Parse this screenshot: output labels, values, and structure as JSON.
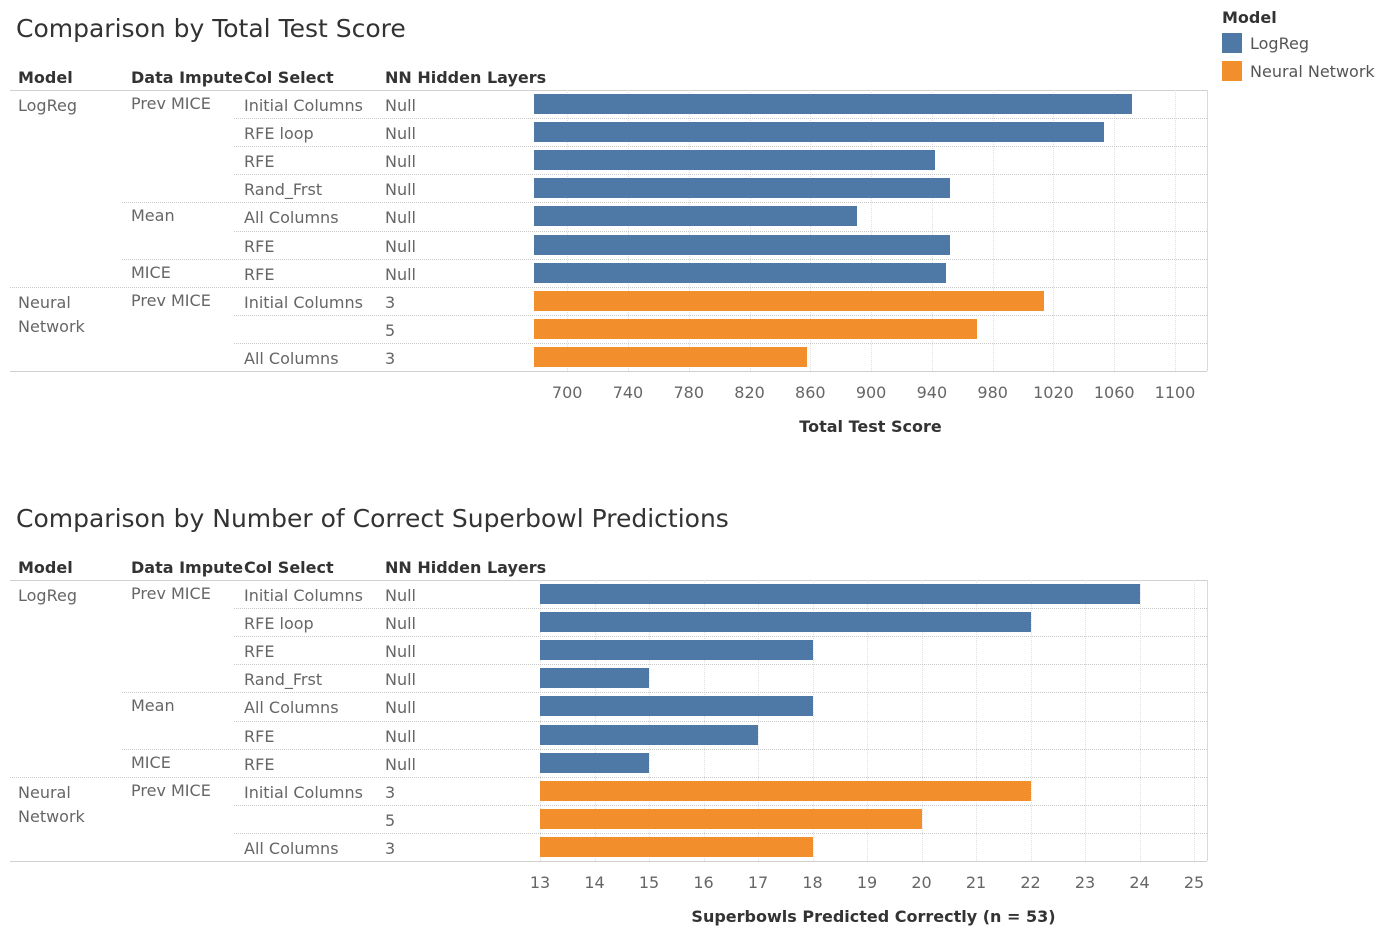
{
  "legend": {
    "title": "Model",
    "items": [
      {
        "label": "LogReg",
        "color": "#4e79a7"
      },
      {
        "label": "Neural Network",
        "color": "#f28e2b"
      }
    ]
  },
  "headers": [
    "Model",
    "Data Impute",
    "Col Select",
    "NN Hidden Layers"
  ],
  "chart_data": [
    {
      "type": "bar",
      "title": "Comparison by Total Test Score",
      "xlabel": "Total Test Score",
      "xlim": [
        690,
        1100
      ],
      "ticks": [
        700,
        740,
        780,
        820,
        860,
        900,
        940,
        980,
        1020,
        1060,
        1100
      ],
      "rows": [
        {
          "model": "LogReg",
          "impute": "Prev MICE",
          "col": "Initial Columns",
          "layers": "Null",
          "value": 1072,
          "series": "LogReg"
        },
        {
          "model": "",
          "impute": "",
          "col": "RFE loop",
          "layers": "Null",
          "value": 1053,
          "series": "LogReg"
        },
        {
          "model": "",
          "impute": "",
          "col": "RFE",
          "layers": "Null",
          "value": 942,
          "series": "LogReg"
        },
        {
          "model": "",
          "impute": "",
          "col": "Rand_Frst",
          "layers": "Null",
          "value": 952,
          "series": "LogReg"
        },
        {
          "model": "",
          "impute": "Mean",
          "col": "All Columns",
          "layers": "Null",
          "value": 891,
          "series": "LogReg"
        },
        {
          "model": "",
          "impute": "",
          "col": "RFE",
          "layers": "Null",
          "value": 952,
          "series": "LogReg"
        },
        {
          "model": "",
          "impute": "MICE",
          "col": "RFE",
          "layers": "Null",
          "value": 949,
          "series": "LogReg"
        },
        {
          "model": "Neural Network",
          "impute": "Prev MICE",
          "col": "Initial Columns",
          "layers": "3",
          "value": 1014,
          "series": "Neural Network"
        },
        {
          "model": "",
          "impute": "",
          "col": "",
          "layers": "5",
          "value": 970,
          "series": "Neural Network"
        },
        {
          "model": "",
          "impute": "",
          "col": "All Columns",
          "layers": "3",
          "value": 858,
          "series": "Neural Network"
        }
      ]
    },
    {
      "type": "bar",
      "title": "Comparison by Number of Correct Superbowl Predictions",
      "xlabel": "Superbowls Predicted Correctly (n = 53)",
      "xlim": [
        13,
        25
      ],
      "ticks": [
        13,
        14,
        15,
        16,
        17,
        18,
        19,
        20,
        21,
        22,
        23,
        24,
        25
      ],
      "rows": [
        {
          "model": "LogReg",
          "impute": "Prev MICE",
          "col": "Initial Columns",
          "layers": "Null",
          "value": 24,
          "series": "LogReg"
        },
        {
          "model": "",
          "impute": "",
          "col": "RFE loop",
          "layers": "Null",
          "value": 22,
          "series": "LogReg"
        },
        {
          "model": "",
          "impute": "",
          "col": "RFE",
          "layers": "Null",
          "value": 18,
          "series": "LogReg"
        },
        {
          "model": "",
          "impute": "",
          "col": "Rand_Frst",
          "layers": "Null",
          "value": 15,
          "series": "LogReg"
        },
        {
          "model": "",
          "impute": "Mean",
          "col": "All Columns",
          "layers": "Null",
          "value": 18,
          "series": "LogReg"
        },
        {
          "model": "",
          "impute": "",
          "col": "RFE",
          "layers": "Null",
          "value": 17,
          "series": "LogReg"
        },
        {
          "model": "",
          "impute": "MICE",
          "col": "RFE",
          "layers": "Null",
          "value": 15,
          "series": "LogReg"
        },
        {
          "model": "Neural Network",
          "impute": "Prev MICE",
          "col": "Initial Columns",
          "layers": "3",
          "value": 22,
          "series": "Neural Network"
        },
        {
          "model": "",
          "impute": "",
          "col": "",
          "layers": "5",
          "value": 20,
          "series": "Neural Network"
        },
        {
          "model": "",
          "impute": "",
          "col": "All Columns",
          "layers": "3",
          "value": 18,
          "series": "Neural Network"
        }
      ]
    }
  ]
}
